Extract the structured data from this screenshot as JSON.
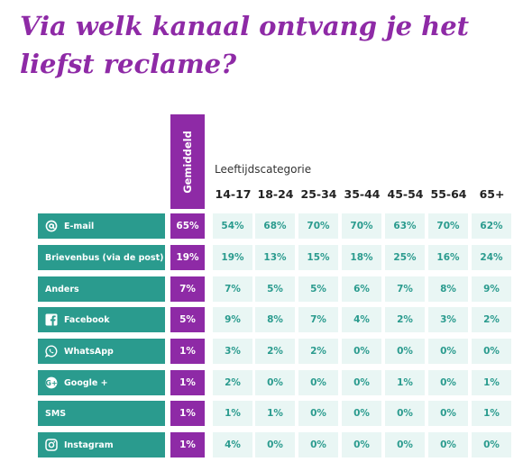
{
  "title": "Via welk kanaal ontvang je het liefst reclame?",
  "colors": {
    "title": "#8e2aa6",
    "average": "#8e2aa6",
    "channel": "#2a9b8e",
    "cell_bg": "#e9f6f4",
    "cell_text": "#2a9b8e"
  },
  "chart_data": {
    "type": "table",
    "title": "Via welk kanaal ontvang je het liefst reclame?",
    "average_label": "Gemiddeld",
    "category_title": "Leeftijdscategorie",
    "age_groups": [
      "14-17",
      "18-24",
      "25-34",
      "35-44",
      "45-54",
      "55-64",
      "65+"
    ],
    "rows": [
      {
        "channel": "E-mail",
        "icon": "at-icon",
        "average": "65%",
        "values": [
          "54%",
          "68%",
          "70%",
          "70%",
          "63%",
          "70%",
          "62%"
        ]
      },
      {
        "channel": "Brievenbus (via de post)",
        "icon": "",
        "average": "19%",
        "values": [
          "19%",
          "13%",
          "15%",
          "18%",
          "25%",
          "16%",
          "24%"
        ]
      },
      {
        "channel": "Anders",
        "icon": "",
        "average": "7%",
        "values": [
          "7%",
          "5%",
          "5%",
          "6%",
          "7%",
          "8%",
          "9%"
        ]
      },
      {
        "channel": "Facebook",
        "icon": "facebook-icon",
        "average": "5%",
        "values": [
          "9%",
          "8%",
          "7%",
          "4%",
          "2%",
          "3%",
          "2%"
        ]
      },
      {
        "channel": "WhatsApp",
        "icon": "whatsapp-icon",
        "average": "1%",
        "values": [
          "3%",
          "2%",
          "2%",
          "0%",
          "0%",
          "0%",
          "0%"
        ]
      },
      {
        "channel": "Google +",
        "icon": "google-plus-icon",
        "average": "1%",
        "values": [
          "2%",
          "0%",
          "0%",
          "0%",
          "1%",
          "0%",
          "1%"
        ]
      },
      {
        "channel": "SMS",
        "icon": "",
        "average": "1%",
        "values": [
          "1%",
          "1%",
          "0%",
          "0%",
          "0%",
          "0%",
          "1%"
        ]
      },
      {
        "channel": "Instagram",
        "icon": "instagram-icon",
        "average": "1%",
        "values": [
          "4%",
          "0%",
          "0%",
          "0%",
          "0%",
          "0%",
          "0%"
        ]
      }
    ]
  }
}
